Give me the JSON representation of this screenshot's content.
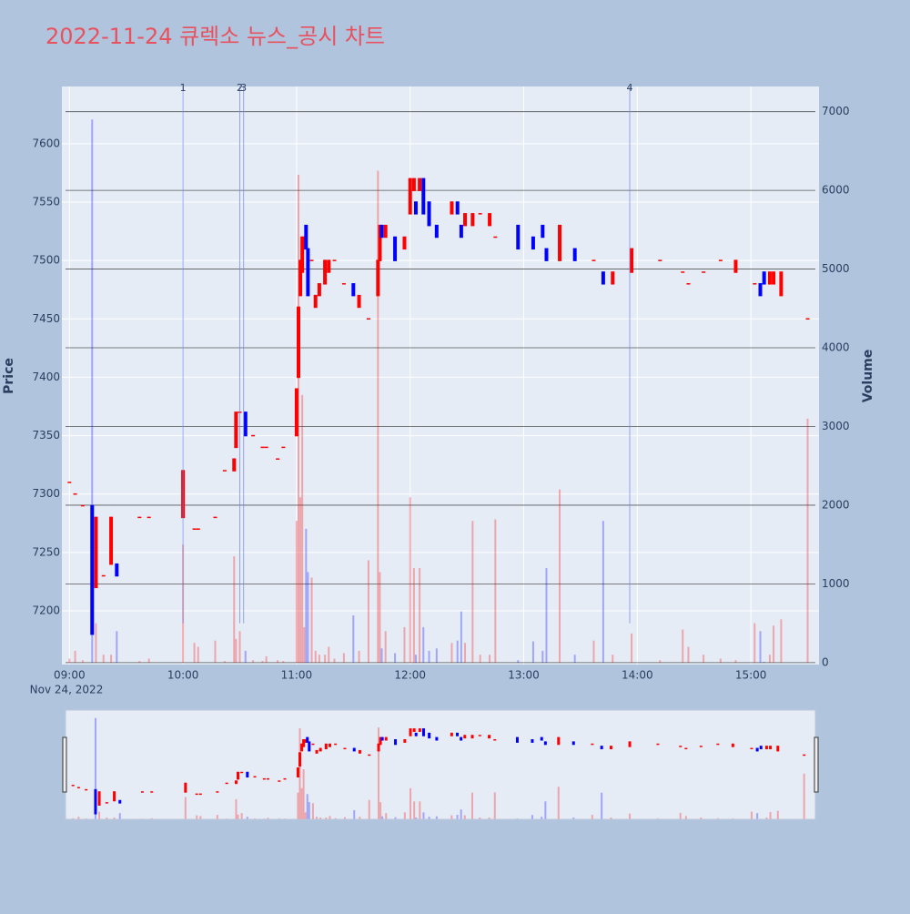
{
  "chart_data": {
    "type": "candlestick",
    "title": "2022-11-24 큐렉소 뉴스_공시 차트",
    "y_label": "Price",
    "y2_label": "Volume",
    "x_date_label": "Nov 24, 2022",
    "increasing_color": "#ff0000",
    "decreasing_color": "#0000ff",
    "x": [
      "2022-11-24 09:00",
      "2022-11-24 09:03",
      "2022-11-24 09:07",
      "2022-11-24 09:12",
      "2022-11-24 09:14",
      "2022-11-24 09:18",
      "2022-11-24 09:22",
      "2022-11-24 09:25",
      "2022-11-24 09:37",
      "2022-11-24 09:42",
      "2022-11-24 10:00",
      "2022-11-24 10:06",
      "2022-11-24 10:08",
      "2022-11-24 10:17",
      "2022-11-24 10:22",
      "2022-11-24 10:27",
      "2022-11-24 10:28",
      "2022-11-24 10:30",
      "2022-11-24 10:33",
      "2022-11-24 10:37",
      "2022-11-24 10:42",
      "2022-11-24 10:44",
      "2022-11-24 10:50",
      "2022-11-24 10:53",
      "2022-11-24 11:00",
      "2022-11-24 11:01",
      "2022-11-24 11:02",
      "2022-11-24 11:03",
      "2022-11-24 11:04",
      "2022-11-24 11:05",
      "2022-11-24 11:06",
      "2022-11-24 11:08",
      "2022-11-24 11:10",
      "2022-11-24 11:12",
      "2022-11-24 11:15",
      "2022-11-24 11:17",
      "2022-11-24 11:20",
      "2022-11-24 11:25",
      "2022-11-24 11:30",
      "2022-11-24 11:33",
      "2022-11-24 11:38",
      "2022-11-24 11:43",
      "2022-11-24 11:44",
      "2022-11-24 11:45",
      "2022-11-24 11:47",
      "2022-11-24 11:52",
      "2022-11-24 11:57",
      "2022-11-24 12:00",
      "2022-11-24 12:02",
      "2022-11-24 12:03",
      "2022-11-24 12:05",
      "2022-11-24 12:07",
      "2022-11-24 12:10",
      "2022-11-24 12:14",
      "2022-11-24 12:22",
      "2022-11-24 12:25",
      "2022-11-24 12:27",
      "2022-11-24 12:29",
      "2022-11-24 12:33",
      "2022-11-24 12:37",
      "2022-11-24 12:42",
      "2022-11-24 12:45",
      "2022-11-24 12:57",
      "2022-11-24 13:05",
      "2022-11-24 13:10",
      "2022-11-24 13:12",
      "2022-11-24 13:19",
      "2022-11-24 13:27",
      "2022-11-24 13:37",
      "2022-11-24 13:42",
      "2022-11-24 13:47",
      "2022-11-24 13:57",
      "2022-11-24 14:12",
      "2022-11-24 14:24",
      "2022-11-24 14:27",
      "2022-11-24 14:35",
      "2022-11-24 14:44",
      "2022-11-24 14:52",
      "2022-11-24 15:02",
      "2022-11-24 15:05",
      "2022-11-24 15:07",
      "2022-11-24 15:10",
      "2022-11-24 15:12",
      "2022-11-24 15:16",
      "2022-11-24 15:30"
    ],
    "open": [
      7310,
      7300,
      7290,
      7290,
      7220,
      7230,
      7240,
      7240,
      7280,
      7280,
      7280,
      7270,
      7270,
      7280,
      7320,
      7320,
      7340,
      7370,
      7370,
      7350,
      7340,
      7340,
      7330,
      7340,
      7350,
      7400,
      7470,
      7490,
      7510,
      7530,
      7510,
      7500,
      7460,
      7470,
      7480,
      7490,
      7500,
      7480,
      7480,
      7460,
      7450,
      7470,
      7500,
      7530,
      7520,
      7520,
      7510,
      7540,
      7560,
      7550,
      7560,
      7570,
      7550,
      7530,
      7540,
      7550,
      7530,
      7530,
      7530,
      7540,
      7530,
      7520,
      7530,
      7520,
      7530,
      7510,
      7500,
      7510,
      7500,
      7490,
      7480,
      7490,
      7500,
      7490,
      7480,
      7490,
      7500,
      7490,
      7480,
      7480,
      7490,
      7480,
      7480,
      7470,
      7450
    ],
    "close": [
      7310,
      7300,
      7290,
      7180,
      7280,
      7230,
      7280,
      7230,
      7280,
      7280,
      7320,
      7270,
      7270,
      7280,
      7320,
      7330,
      7370,
      7370,
      7350,
      7350,
      7340,
      7340,
      7330,
      7340,
      7390,
      7460,
      7500,
      7520,
      7520,
      7510,
      7470,
      7500,
      7470,
      7480,
      7500,
      7500,
      7500,
      7480,
      7470,
      7470,
      7450,
      7500,
      7530,
      7520,
      7530,
      7500,
      7520,
      7570,
      7570,
      7540,
      7570,
      7540,
      7530,
      7520,
      7550,
      7540,
      7520,
      7540,
      7540,
      7540,
      7540,
      7520,
      7510,
      7510,
      7520,
      7500,
      7530,
      7500,
      7500,
      7480,
      7490,
      7510,
      7500,
      7490,
      7480,
      7490,
      7500,
      7500,
      7480,
      7470,
      7480,
      7490,
      7490,
      7490,
      7450
    ],
    "volume": [
      50,
      150,
      30,
      6900,
      500,
      100,
      100,
      400,
      20,
      50,
      1500,
      250,
      200,
      280,
      20,
      1350,
      300,
      400,
      150,
      30,
      20,
      80,
      30,
      20,
      1800,
      6200,
      2100,
      3400,
      450,
      1700,
      1150,
      1080,
      150,
      100,
      100,
      200,
      50,
      120,
      600,
      150,
      1300,
      6250,
      1150,
      180,
      400,
      120,
      450,
      2100,
      1200,
      100,
      1200,
      450,
      150,
      180,
      250,
      280,
      650,
      250,
      1800,
      100,
      100,
      1820,
      30,
      270,
      150,
      1200,
      2200,
      100,
      280,
      1800,
      100,
      370,
      30,
      420,
      200,
      100,
      50,
      30,
      500,
      400,
      10,
      100,
      470,
      550,
      3100
    ],
    "xlim": [
      "2022-11-24 08:56",
      "2022-11-24 15:36"
    ],
    "xticks": [
      {
        "value": "2022-11-24 09:00",
        "label": "09:00"
      },
      {
        "value": "2022-11-24 10:00",
        "label": "10:00"
      },
      {
        "value": "2022-11-24 11:00",
        "label": "11:00"
      },
      {
        "value": "2022-11-24 12:00",
        "label": "12:00"
      },
      {
        "value": "2022-11-24 13:00",
        "label": "13:00"
      },
      {
        "value": "2022-11-24 14:00",
        "label": "14:00"
      },
      {
        "value": "2022-11-24 15:00",
        "label": "15:00"
      }
    ],
    "ylim": [
      7154,
      7649
    ],
    "yticks": [
      7200,
      7250,
      7300,
      7350,
      7400,
      7450,
      7500,
      7550,
      7600
    ],
    "y2lim": [
      -25,
      7320
    ],
    "y2ticks": [
      0,
      1000,
      2000,
      3000,
      4000,
      5000,
      6000,
      7000
    ],
    "vlines": [
      {
        "x": "2022-11-24 10:00",
        "label": "1"
      },
      {
        "x": "2022-11-24 10:30",
        "label": "2"
      },
      {
        "x": "2022-11-24 10:32",
        "label": "3"
      },
      {
        "x": "2022-11-24 13:56",
        "label": "4"
      }
    ]
  }
}
